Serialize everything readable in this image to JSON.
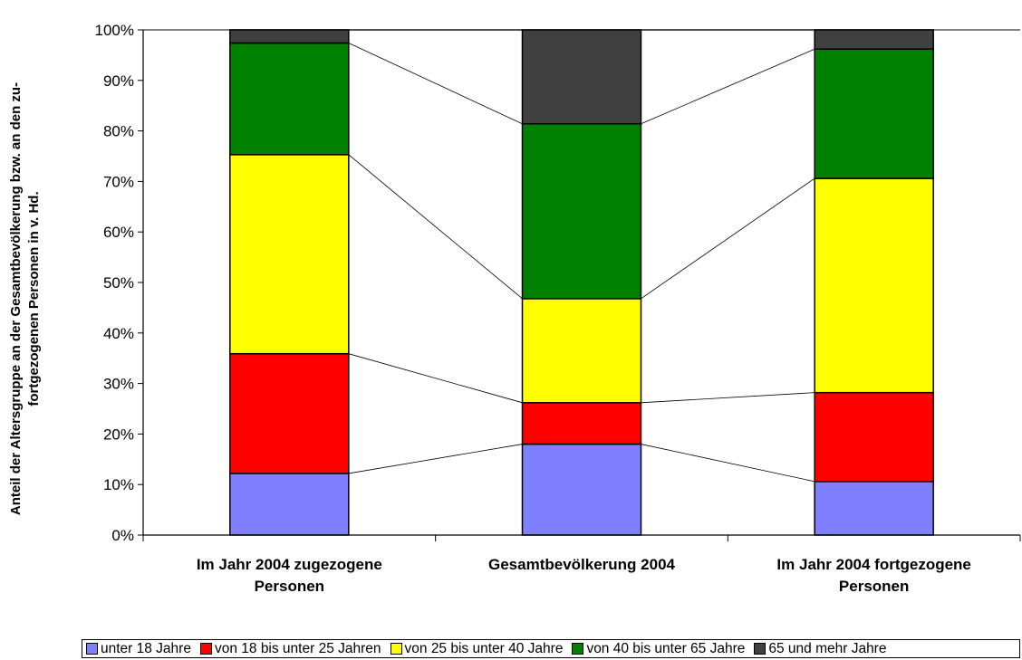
{
  "chart_data": {
    "type": "bar",
    "stacked": true,
    "normalized_percent": true,
    "categories": [
      [
        "Im Jahr 2004 zugezogene",
        "Personen"
      ],
      [
        "Gesamtbevölkerung 2004"
      ],
      [
        "Im Jahr 2004 fortgezogene",
        "Personen"
      ]
    ],
    "series": [
      {
        "name": "unter 18 Jahre",
        "color": "#8080FF",
        "values": [
          12.2,
          18.0,
          10.6
        ]
      },
      {
        "name": "von 18 bis unter 25 Jahren",
        "color": "#FF0000",
        "values": [
          23.7,
          8.2,
          17.6
        ]
      },
      {
        "name": "von 25 bis unter 40 Jahre",
        "color": "#FFFF00",
        "values": [
          39.4,
          20.6,
          42.4
        ]
      },
      {
        "name": "von 40 bis unter 65 Jahre",
        "color": "#008000",
        "values": [
          22.1,
          34.6,
          25.6
        ]
      },
      {
        "name": "65 und mehr Jahre",
        "color": "#404040",
        "values": [
          2.6,
          18.6,
          3.8
        ]
      }
    ],
    "ylabel": [
      "Anteil der Altersgruppe an der Gesamtbevölkerung bzw. an den zu-",
      "fortgezogenen Personen in v. Hd."
    ],
    "ylim": [
      0,
      100
    ],
    "yticks": [
      "0%",
      "10%",
      "20%",
      "30%",
      "40%",
      "50%",
      "60%",
      "70%",
      "80%",
      "90%",
      "100%"
    ],
    "series_lines": true,
    "grid": false,
    "legend": "bottom"
  }
}
